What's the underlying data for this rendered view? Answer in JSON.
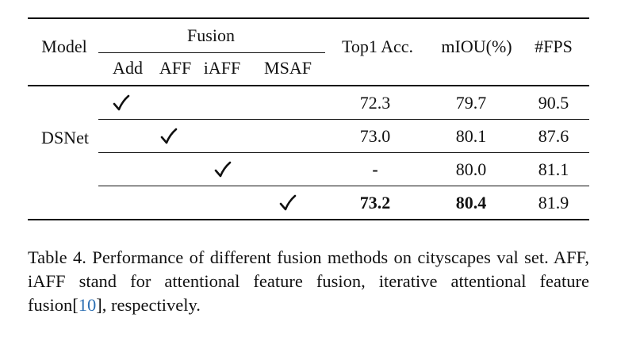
{
  "table": {
    "header": {
      "model": "Model",
      "fusion": "Fusion",
      "fusion_subcolumns": [
        "Add",
        "AFF",
        "iAFF",
        "MSAF"
      ],
      "top1_acc": "Top1 Acc.",
      "miou": "mIOU(%)",
      "fps": "#FPS"
    },
    "model_name": "DSNet",
    "check_glyph": "✓",
    "rows": [
      {
        "fusion": "Add",
        "top1": "72.3",
        "miou": "79.7",
        "fps": "90.5",
        "bold": false
      },
      {
        "fusion": "AFF",
        "top1": "73.0",
        "miou": "80.1",
        "fps": "87.6",
        "bold": false
      },
      {
        "fusion": "iAFF",
        "top1": "-",
        "miou": "80.0",
        "fps": "81.1",
        "bold": false
      },
      {
        "fusion": "MSAF",
        "top1": "73.2",
        "miou": "80.4",
        "fps": "81.9",
        "bold": true
      }
    ]
  },
  "caption": {
    "prefix": "Table 4.  Performance of different fusion methods on cityscapes val set.  AFF, iAFF stand for attentional feature fusion, iterative attentional feature fusion[",
    "ref": "10",
    "suffix": "], respectively."
  }
}
